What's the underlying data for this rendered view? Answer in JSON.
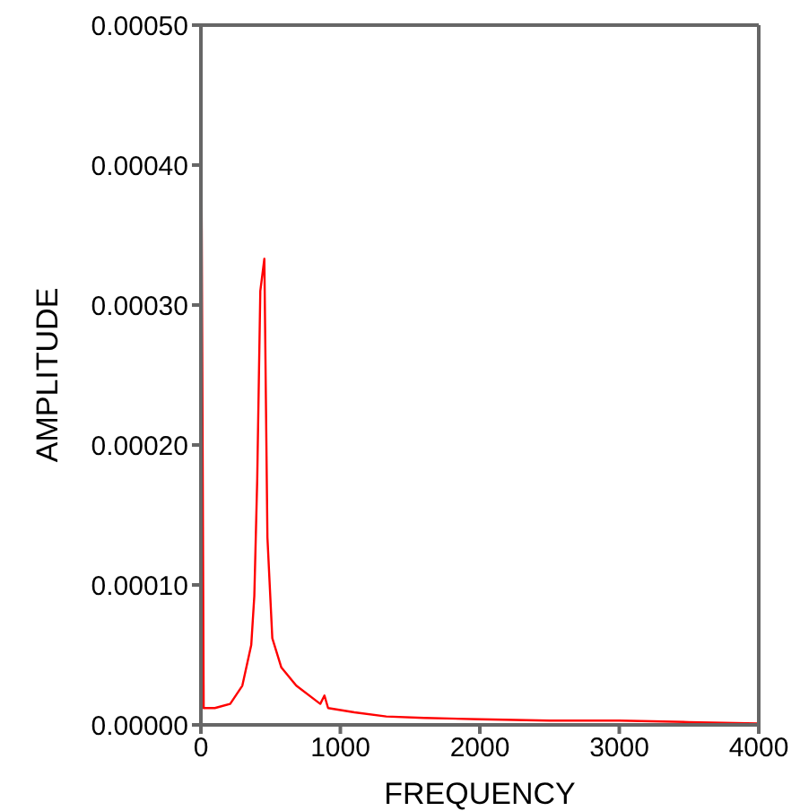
{
  "chart_data": {
    "type": "line",
    "xlabel": "FREQUENCY",
    "ylabel": "AMPLITUDE",
    "x": [
      0,
      20,
      100,
      210,
      297,
      361,
      383,
      404,
      426,
      455,
      477,
      512,
      577,
      684,
      856,
      886,
      912,
      1100,
      1329,
      1600,
      2000,
      2500,
      3000,
      3500,
      4000
    ],
    "series": [
      {
        "color": "#ff0000",
        "values": [
          0.0005,
          1.2e-05,
          1.2e-05,
          1.5e-05,
          2.8e-05,
          5.7e-05,
          9.2e-05,
          0.000176,
          0.00031,
          0.000333,
          0.000134,
          6.2e-05,
          4.1e-05,
          2.8e-05,
          1.5e-05,
          2.1e-05,
          1.2e-05,
          9e-06,
          6e-06,
          5e-06,
          4e-06,
          3e-06,
          3e-06,
          2e-06,
          1e-06
        ]
      }
    ],
    "xlim": [
      0,
      4000
    ],
    "xticks": [
      0,
      1000,
      2000,
      3000,
      4000
    ],
    "ylim": [
      0,
      0.0005
    ],
    "yticks": [
      {
        "value": 0,
        "label": "0.00000"
      },
      {
        "value": 0.0001,
        "label": "0.00010"
      },
      {
        "value": 0.0002,
        "label": "0.00020"
      },
      {
        "value": 0.0003,
        "label": "0.00030"
      },
      {
        "value": 0.0004,
        "label": "0.00040"
      },
      {
        "value": 0.0005,
        "label": "0.00050"
      }
    ],
    "grid": false,
    "legend": false,
    "marker": "none",
    "line_style": "solid"
  }
}
